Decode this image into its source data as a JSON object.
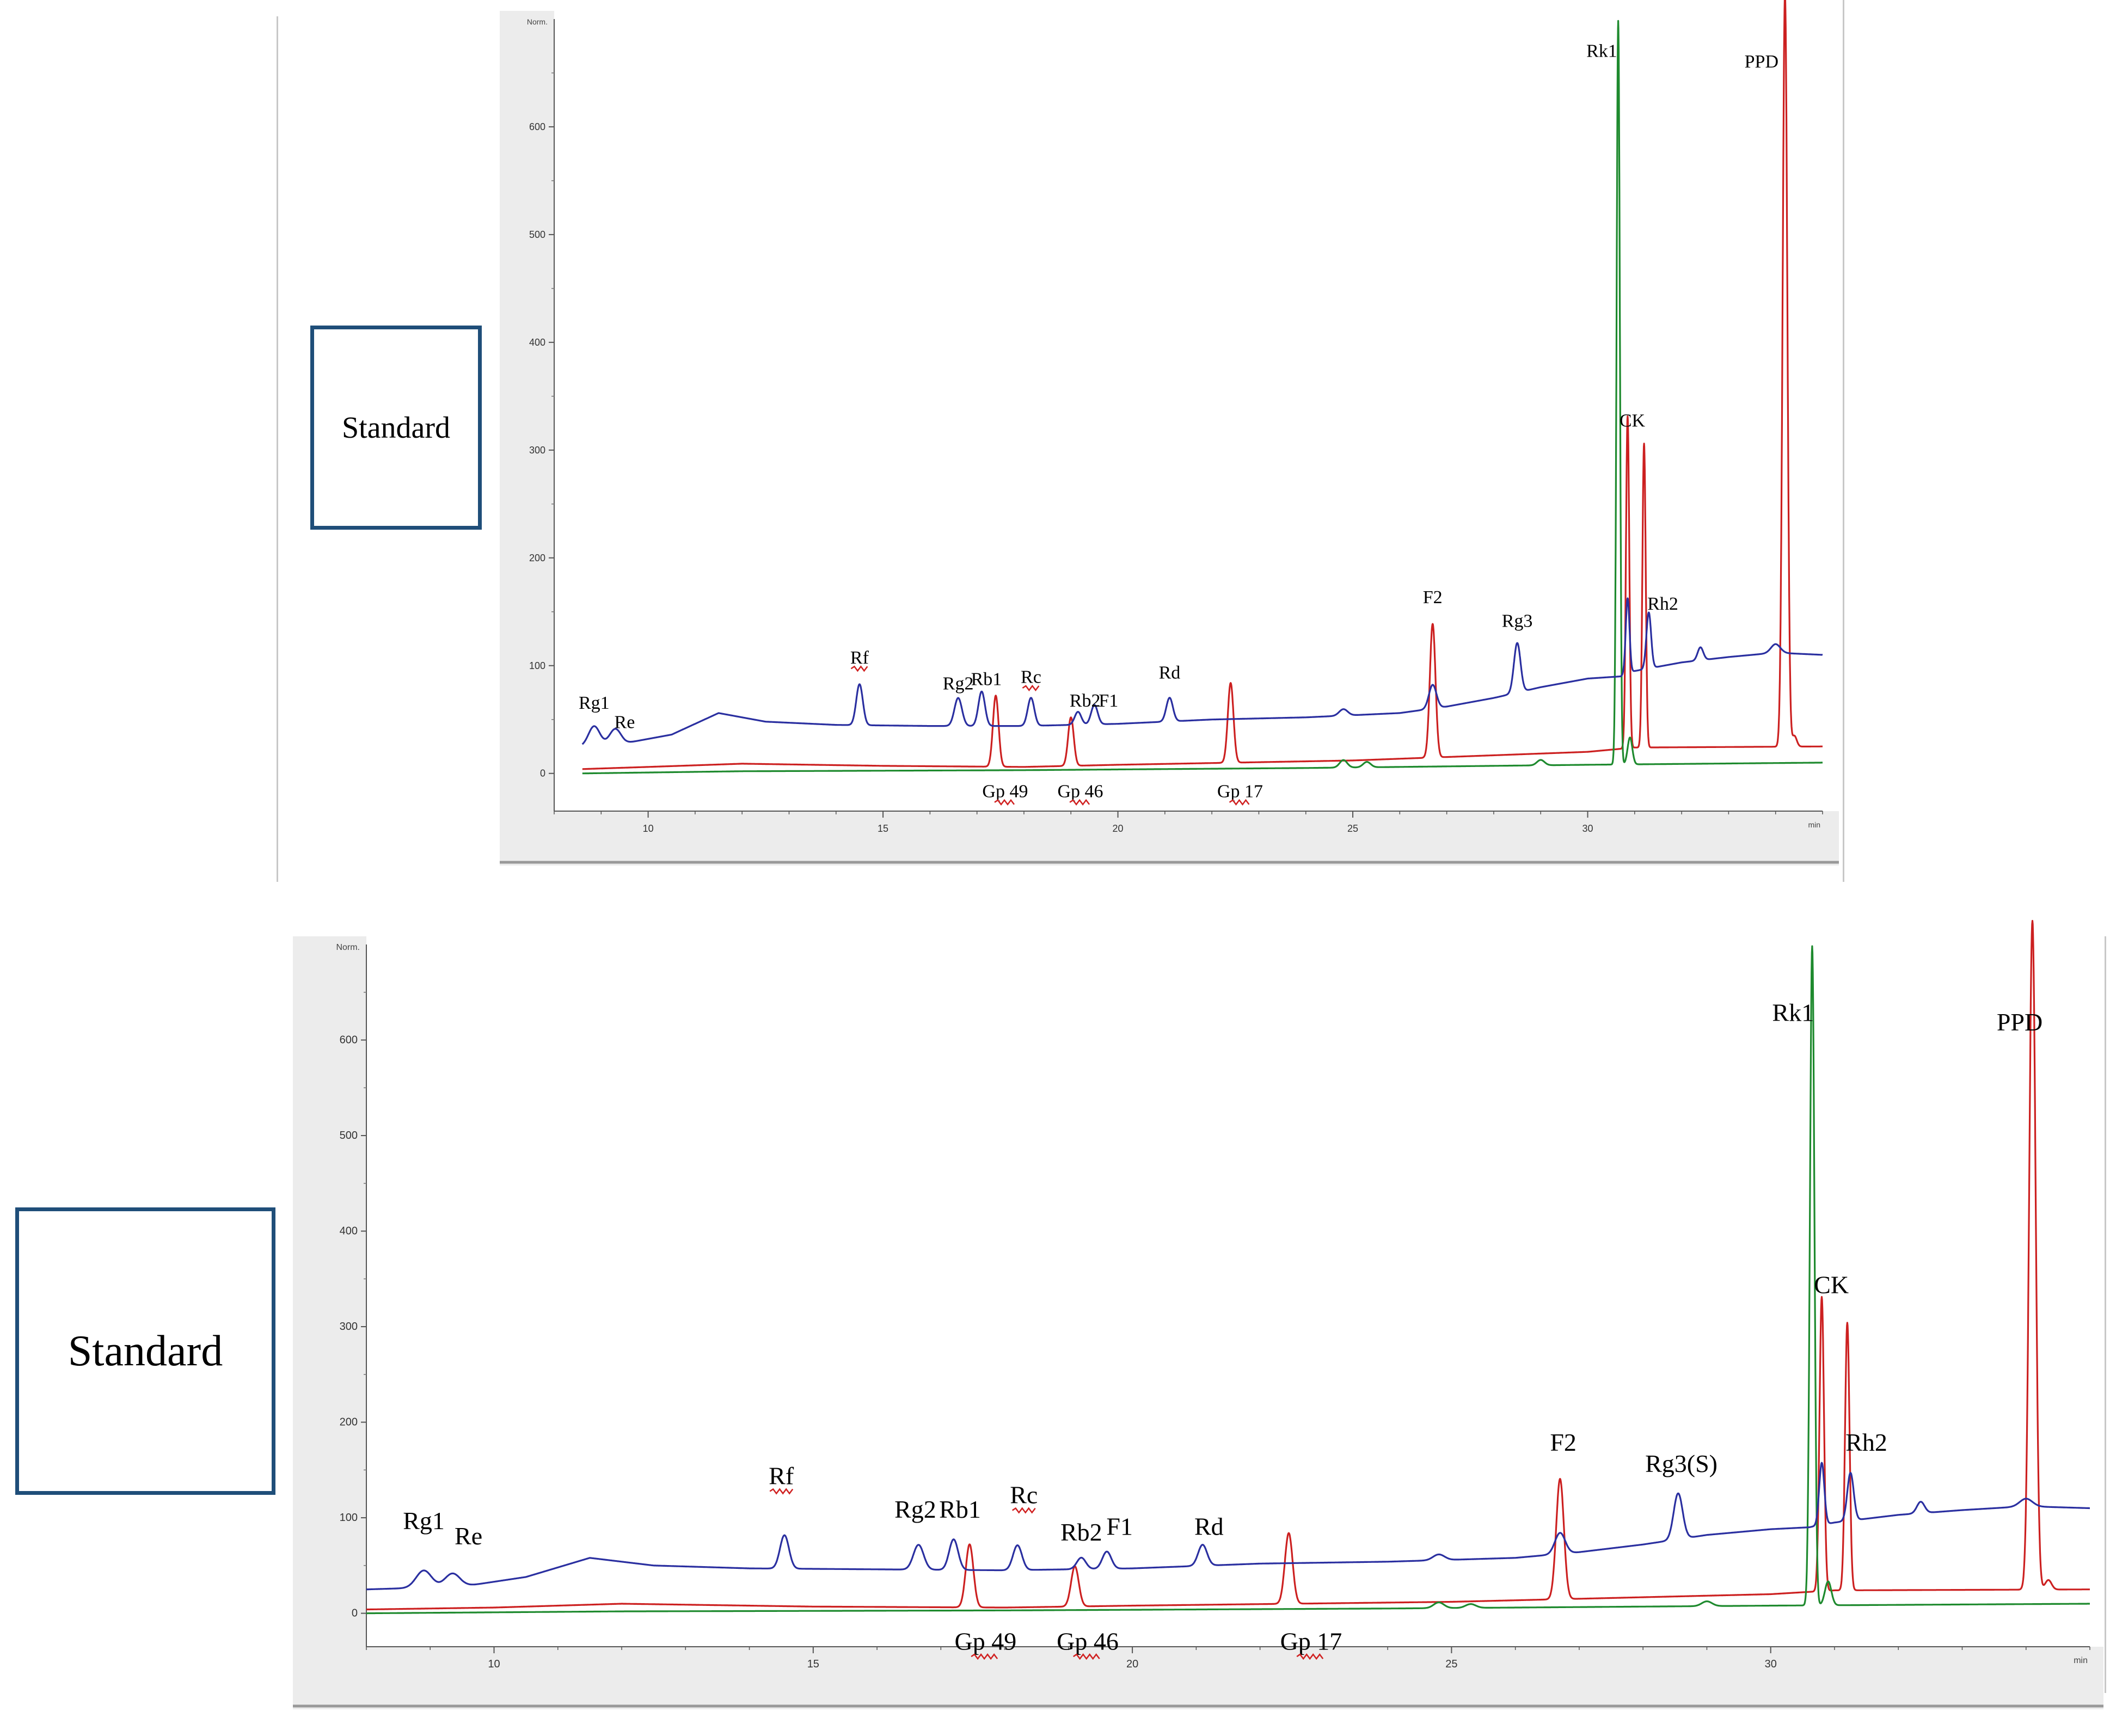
{
  "standard_label_1": "Standard",
  "standard_label_2": "Standard",
  "chart_data": [
    {
      "type": "line",
      "title": "",
      "ylabel": "Norm.",
      "xlabel": "min",
      "xlim": [
        8,
        35
      ],
      "ylim": [
        -35,
        700
      ],
      "x_ticks": [
        10,
        15,
        20,
        25,
        30
      ],
      "y_ticks": [
        0,
        100,
        200,
        300,
        400,
        500,
        600
      ],
      "colors": {
        "blue": "#2a2fa0",
        "red": "#cc2020",
        "green": "#1e8a2e"
      },
      "series": [
        {
          "color_key": "blue",
          "baseline": [
            [
              8.6,
              25
            ],
            [
              9.5,
              28
            ],
            [
              10.5,
              36
            ],
            [
              11.5,
              56
            ],
            [
              12.5,
              48
            ],
            [
              14,
              45
            ],
            [
              16,
              44
            ],
            [
              18,
              44
            ],
            [
              20,
              46
            ],
            [
              22,
              50
            ],
            [
              24,
              52
            ],
            [
              26,
              56
            ],
            [
              27,
              62
            ],
            [
              28,
              70
            ],
            [
              29,
              80
            ],
            [
              30,
              88
            ],
            [
              30.7,
              90
            ],
            [
              31,
              95
            ],
            [
              32,
              103
            ],
            [
              33,
              108
            ],
            [
              34,
              112
            ],
            [
              35,
              110
            ]
          ],
          "peaks": [
            [
              8.85,
              18,
              0.12
            ],
            [
              9.3,
              14,
              0.12
            ],
            [
              14.5,
              38,
              0.07
            ],
            [
              16.6,
              26,
              0.08
            ],
            [
              17.1,
              32,
              0.07
            ],
            [
              18.15,
              26,
              0.07
            ],
            [
              19.15,
              12,
              0.07
            ],
            [
              19.5,
              18,
              0.07
            ],
            [
              21.1,
              22,
              0.07
            ],
            [
              24.8,
              6,
              0.09
            ],
            [
              26.7,
              22,
              0.08
            ],
            [
              28.5,
              46,
              0.07
            ],
            [
              30.85,
              70,
              0.04
            ],
            [
              31.3,
              52,
              0.05
            ],
            [
              32.4,
              12,
              0.06
            ],
            [
              34,
              8,
              0.1
            ]
          ]
        },
        {
          "color_key": "red",
          "baseline": [
            [
              8.6,
              4
            ],
            [
              10,
              6
            ],
            [
              12,
              9
            ],
            [
              15,
              7
            ],
            [
              18,
              6
            ],
            [
              20,
              8
            ],
            [
              25,
              12
            ],
            [
              30,
              20
            ],
            [
              31,
              24
            ],
            [
              35,
              25
            ]
          ],
          "peaks": [
            [
              17.4,
              66,
              0.06
            ],
            [
              19,
              45,
              0.06
            ],
            [
              22.4,
              74,
              0.06
            ],
            [
              26.7,
              124,
              0.06
            ],
            [
              30.85,
              308,
              0.035
            ],
            [
              31.2,
              282,
              0.035
            ],
            [
              34.2,
              698,
              0.05
            ],
            [
              34.4,
              10,
              0.05
            ]
          ]
        },
        {
          "color_key": "green",
          "baseline": [
            [
              8.6,
              0
            ],
            [
              12,
              2
            ],
            [
              18,
              3
            ],
            [
              24,
              5
            ],
            [
              28,
              7
            ],
            [
              30,
              8
            ],
            [
              35,
              10
            ]
          ],
          "peaks": [
            [
              24.8,
              7,
              0.08
            ],
            [
              25.3,
              5,
              0.08
            ],
            [
              29,
              5,
              0.08
            ],
            [
              30.65,
              690,
              0.035
            ],
            [
              30.9,
              25,
              0.05
            ]
          ]
        }
      ],
      "labels": [
        {
          "text": "Rg1",
          "x": 8.85,
          "y": 60
        },
        {
          "text": "Re",
          "x": 9.5,
          "y": 42
        },
        {
          "text": "Rf",
          "x": 14.5,
          "y": 102,
          "squiggle": true
        },
        {
          "text": "Rg2",
          "x": 16.6,
          "y": 78
        },
        {
          "text": "Rb1",
          "x": 17.2,
          "y": 82
        },
        {
          "text": "Rc",
          "x": 18.15,
          "y": 84,
          "squiggle": true
        },
        {
          "text": "Rb2",
          "x": 19.3,
          "y": 62
        },
        {
          "text": "F1",
          "x": 19.8,
          "y": 62
        },
        {
          "text": "Rd",
          "x": 21.1,
          "y": 88
        },
        {
          "text": "F2",
          "x": 26.7,
          "y": 158
        },
        {
          "text": "Rg3",
          "x": 28.5,
          "y": 136
        },
        {
          "text": "Rk1",
          "x": 30.3,
          "y": 665
        },
        {
          "text": "CK",
          "x": 30.95,
          "y": 322
        },
        {
          "text": "Rh2",
          "x": 31.6,
          "y": 152
        },
        {
          "text": "PPD",
          "x": 33.7,
          "y": 655
        },
        {
          "text": "Gp 49",
          "x": 17.6,
          "y": -22,
          "squiggle": true
        },
        {
          "text": "Gp 46",
          "x": 19.2,
          "y": -22,
          "squiggle": true
        },
        {
          "text": "Gp 17",
          "x": 22.6,
          "y": -22,
          "squiggle": true
        }
      ]
    },
    {
      "type": "line",
      "title": "",
      "ylabel": "Norm.",
      "xlabel": "min",
      "xlim": [
        8,
        35
      ],
      "ylim": [
        -35,
        700
      ],
      "x_ticks": [
        10,
        15,
        20,
        25,
        30
      ],
      "y_ticks": [
        0,
        100,
        200,
        300,
        400,
        500,
        600
      ],
      "colors": {
        "blue": "#2a2fa0",
        "red": "#cc2020",
        "green": "#1e8a2e"
      },
      "series": [
        {
          "color_key": "blue",
          "baseline": [
            [
              8,
              25
            ],
            [
              9.5,
              28
            ],
            [
              10.5,
              38
            ],
            [
              11.5,
              58
            ],
            [
              12.5,
              50
            ],
            [
              14,
              47
            ],
            [
              16,
              46
            ],
            [
              18,
              45
            ],
            [
              20,
              47
            ],
            [
              22,
              52
            ],
            [
              24,
              54
            ],
            [
              26,
              58
            ],
            [
              27,
              64
            ],
            [
              28,
              72
            ],
            [
              29,
              82
            ],
            [
              30,
              88
            ],
            [
              30.6,
              90
            ],
            [
              31,
              95
            ],
            [
              32,
              103
            ],
            [
              33,
              108
            ],
            [
              34,
              112
            ],
            [
              35,
              110
            ]
          ],
          "peaks": [
            [
              8.9,
              18,
              0.12
            ],
            [
              9.35,
              14,
              0.12
            ],
            [
              14.55,
              35,
              0.07
            ],
            [
              16.65,
              26,
              0.08
            ],
            [
              17.2,
              32,
              0.07
            ],
            [
              18.2,
              26,
              0.07
            ],
            [
              19.2,
              12,
              0.07
            ],
            [
              19.6,
              18,
              0.07
            ],
            [
              21.1,
              22,
              0.07
            ],
            [
              24.8,
              6,
              0.09
            ],
            [
              26.7,
              22,
              0.08
            ],
            [
              28.55,
              48,
              0.07
            ],
            [
              30.8,
              65,
              0.04
            ],
            [
              31.25,
              50,
              0.05
            ],
            [
              32.35,
              12,
              0.06
            ],
            [
              34,
              8,
              0.1
            ]
          ]
        },
        {
          "color_key": "red",
          "baseline": [
            [
              8,
              4
            ],
            [
              10,
              6
            ],
            [
              12,
              10
            ],
            [
              15,
              7
            ],
            [
              18,
              6
            ],
            [
              20,
              8
            ],
            [
              25,
              12
            ],
            [
              30,
              20
            ],
            [
              31,
              24
            ],
            [
              35,
              25
            ]
          ],
          "peaks": [
            [
              17.45,
              66,
              0.06
            ],
            [
              19.1,
              42,
              0.06
            ],
            [
              22.45,
              74,
              0.06
            ],
            [
              26.7,
              126,
              0.06
            ],
            [
              30.8,
              308,
              0.035
            ],
            [
              31.2,
              280,
              0.035
            ],
            [
              34.1,
              700,
              0.05
            ],
            [
              34.35,
              10,
              0.05
            ]
          ]
        },
        {
          "color_key": "green",
          "baseline": [
            [
              8,
              0
            ],
            [
              12,
              2
            ],
            [
              18,
              3
            ],
            [
              24,
              5
            ],
            [
              28,
              7
            ],
            [
              30,
              8
            ],
            [
              35,
              10
            ]
          ],
          "peaks": [
            [
              24.8,
              6,
              0.08
            ],
            [
              25.3,
              4,
              0.08
            ],
            [
              29,
              5,
              0.08
            ],
            [
              30.65,
              690,
              0.035
            ],
            [
              30.9,
              25,
              0.05
            ]
          ]
        }
      ],
      "labels": [
        {
          "text": "Rg1",
          "x": 8.9,
          "y": 88
        },
        {
          "text": "Re",
          "x": 9.6,
          "y": 72
        },
        {
          "text": "Rf",
          "x": 14.5,
          "y": 135,
          "squiggle": true
        },
        {
          "text": "Rg2",
          "x": 16.6,
          "y": 100
        },
        {
          "text": "Rb1",
          "x": 17.3,
          "y": 100
        },
        {
          "text": "Rc",
          "x": 18.3,
          "y": 115,
          "squiggle": true
        },
        {
          "text": "Rb2",
          "x": 19.2,
          "y": 76
        },
        {
          "text": "F1",
          "x": 19.8,
          "y": 82
        },
        {
          "text": "Rd",
          "x": 21.2,
          "y": 82
        },
        {
          "text": "F2",
          "x": 26.75,
          "y": 170
        },
        {
          "text": "Rg3(S)",
          "x": 28.6,
          "y": 148
        },
        {
          "text": "Rk1",
          "x": 30.35,
          "y": 620
        },
        {
          "text": "CK",
          "x": 30.95,
          "y": 335
        },
        {
          "text": "Rh2",
          "x": 31.5,
          "y": 170
        },
        {
          "text": "PPD",
          "x": 33.9,
          "y": 610
        },
        {
          "text": "Gp 49",
          "x": 17.7,
          "y": -38,
          "squiggle": true
        },
        {
          "text": "Gp 46",
          "x": 19.3,
          "y": -38,
          "squiggle": true
        },
        {
          "text": "Gp 17",
          "x": 22.8,
          "y": -38,
          "squiggle": true
        }
      ]
    }
  ]
}
